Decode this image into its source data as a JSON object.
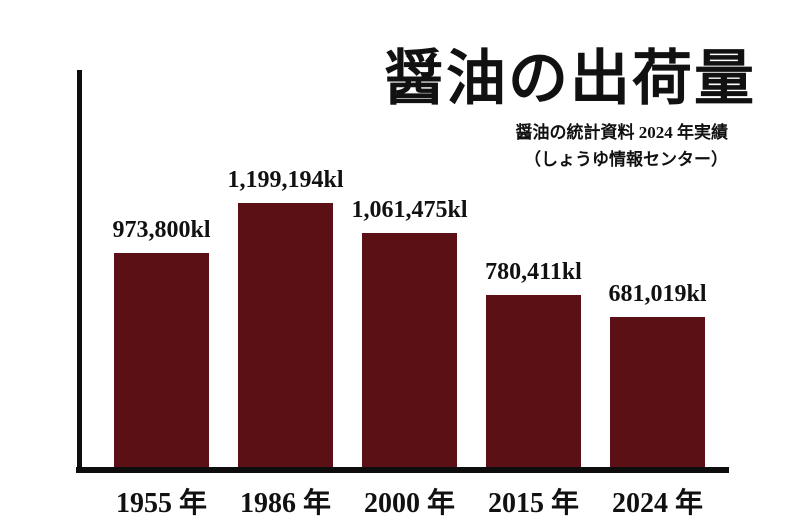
{
  "chart_data": {
    "type": "bar",
    "title": "醤油の出荷量",
    "subtitle": "醤油の統計資料 2024 年実績",
    "source": "（しょうゆ情報センター）",
    "categories": [
      "1955 年",
      "1986 年",
      "2000 年",
      "2015 年",
      "2024 年"
    ],
    "values": [
      973800,
      1199194,
      1061475,
      780411,
      681019
    ],
    "value_labels": [
      "973,800kl",
      "1,199,194kl",
      "1,061,475kl",
      "780,411kl",
      "681,019kl"
    ],
    "unit": "kl",
    "xlabel": "",
    "ylabel": "",
    "ylim": [
      0,
      1199194
    ],
    "grid": false,
    "legend": "none",
    "value_label_position": "above-bar",
    "bar_color": "#5a1014",
    "axis_color": "#0d0d0d",
    "text_color": "#111111",
    "background_color": "#ffffff"
  }
}
